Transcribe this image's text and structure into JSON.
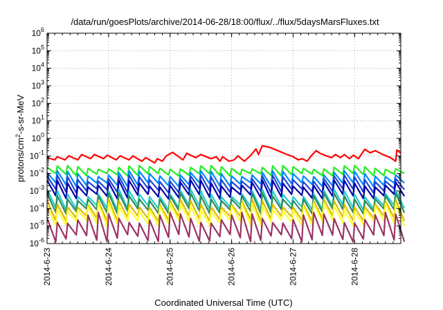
{
  "chart_data": {
    "type": "line",
    "title": "/data/run/goesPlots/archive/2014-06-28/18:00/flux/../flux/5daysMarsFluxes.txt",
    "xlabel": "Coordinated Universal Time (UTC)",
    "ylabel_parts": [
      "protons/cm",
      "2",
      "-s-sr-MeV"
    ],
    "yscale": "log",
    "ylim": [
      1e-06,
      1000000.0
    ],
    "y_ticks": [
      {
        "base": "10",
        "exp": "-6",
        "value": 1e-06
      },
      {
        "base": "10",
        "exp": "-5",
        "value": 1e-05
      },
      {
        "base": "10",
        "exp": "-4",
        "value": 0.0001
      },
      {
        "base": "10",
        "exp": "-3",
        "value": 0.001
      },
      {
        "base": "10",
        "exp": "-2",
        "value": 0.01
      },
      {
        "base": "10",
        "exp": "-1",
        "value": 0.1
      },
      {
        "base": "10",
        "exp": "0",
        "value": 1
      },
      {
        "base": "10",
        "exp": "1",
        "value": 10
      },
      {
        "base": "10",
        "exp": "2",
        "value": 100
      },
      {
        "base": "10",
        "exp": "3",
        "value": 1000
      },
      {
        "base": "10",
        "exp": "4",
        "value": 10000
      },
      {
        "base": "10",
        "exp": "5",
        "value": 100000
      },
      {
        "base": "10",
        "exp": "6",
        "value": 1000000
      }
    ],
    "xlim": [
      "2014-06-23T00:00",
      "2014-06-28T18:00"
    ],
    "x_ticks": [
      {
        "label": "2014-6-23",
        "date": "2014-06-23T00:00"
      },
      {
        "label": "2014-6-24",
        "date": "2014-06-24T00:00"
      },
      {
        "label": "2014-6-25",
        "date": "2014-06-25T00:00"
      },
      {
        "label": "2014-6-26",
        "date": "2014-06-26T00:00"
      },
      {
        "label": "2014-6-27",
        "date": "2014-06-27T00:00"
      },
      {
        "label": "2014-6-28",
        "date": "2014-06-28T00:00"
      }
    ],
    "grid": true,
    "series": [
      {
        "color": "#ff0000",
        "points": [
          [
            "2014-06-23T00:00",
            0.08
          ],
          [
            "2014-06-23T03:00",
            0.06
          ],
          [
            "2014-06-23T04:00",
            0.09
          ],
          [
            "2014-06-23T07:00",
            0.06
          ],
          [
            "2014-06-23T08:30",
            0.1
          ],
          [
            "2014-06-23T12:00",
            0.06
          ],
          [
            "2014-06-23T13:30",
            0.12
          ],
          [
            "2014-06-23T17:00",
            0.07
          ],
          [
            "2014-06-23T18:30",
            0.12
          ],
          [
            "2014-06-23T22:00",
            0.07
          ],
          [
            "2014-06-23T23:30",
            0.11
          ],
          [
            "2014-06-24T03:00",
            0.06
          ],
          [
            "2014-06-24T04:30",
            0.1
          ],
          [
            "2014-06-24T08:00",
            0.06
          ],
          [
            "2014-06-24T09:30",
            0.1
          ],
          [
            "2014-06-24T13:00",
            0.05
          ],
          [
            "2014-06-24T14:30",
            0.08
          ],
          [
            "2014-06-24T18:00",
            0.04
          ],
          [
            "2014-06-24T19:00",
            0.07
          ],
          [
            "2014-06-24T21:00",
            0.05
          ],
          [
            "2014-06-24T22:30",
            0.1
          ],
          [
            "2014-06-25T01:00",
            0.16
          ],
          [
            "2014-06-25T05:00",
            0.06
          ],
          [
            "2014-06-25T06:30",
            0.14
          ],
          [
            "2014-06-25T10:00",
            0.08
          ],
          [
            "2014-06-25T12:00",
            0.12
          ],
          [
            "2014-06-25T16:00",
            0.07
          ],
          [
            "2014-06-25T18:00",
            0.09
          ],
          [
            "2014-06-25T19:30",
            0.05
          ],
          [
            "2014-06-25T20:30",
            0.09
          ],
          [
            "2014-06-25T23:00",
            0.05
          ],
          [
            "2014-06-26T01:00",
            0.06
          ],
          [
            "2014-06-26T02:30",
            0.1
          ],
          [
            "2014-06-26T05:00",
            0.05
          ],
          [
            "2014-06-26T07:30",
            0.11
          ],
          [
            "2014-06-26T09:30",
            0.25
          ],
          [
            "2014-06-26T10:30",
            0.12
          ],
          [
            "2014-06-26T12:00",
            0.38
          ],
          [
            "2014-06-26T15:00",
            0.3
          ],
          [
            "2014-06-26T18:00",
            0.2
          ],
          [
            "2014-06-26T21:00",
            0.13
          ],
          [
            "2014-06-27T00:00",
            0.09
          ],
          [
            "2014-06-27T02:00",
            0.06
          ],
          [
            "2014-06-27T03:30",
            0.07
          ],
          [
            "2014-06-27T05:30",
            0.05
          ],
          [
            "2014-06-27T07:00",
            0.1
          ],
          [
            "2014-06-27T09:00",
            0.2
          ],
          [
            "2014-06-27T10:30",
            0.14
          ],
          [
            "2014-06-27T13:00",
            0.1
          ],
          [
            "2014-06-27T15:00",
            0.08
          ],
          [
            "2014-06-27T16:30",
            0.12
          ],
          [
            "2014-06-27T18:30",
            0.08
          ],
          [
            "2014-06-27T20:00",
            0.12
          ],
          [
            "2014-06-27T22:00",
            0.07
          ],
          [
            "2014-06-27T23:30",
            0.11
          ],
          [
            "2014-06-28T01:30",
            0.07
          ],
          [
            "2014-06-28T03:00",
            0.15
          ],
          [
            "2014-06-28T04:00",
            0.24
          ],
          [
            "2014-06-28T06:00",
            0.15
          ],
          [
            "2014-06-28T08:00",
            0.2
          ],
          [
            "2014-06-28T11:00",
            0.12
          ],
          [
            "2014-06-28T14:00",
            0.08
          ],
          [
            "2014-06-28T16:00",
            0.05
          ],
          [
            "2014-06-28T16:30",
            0.22
          ],
          [
            "2014-06-28T18:00",
            0.14
          ]
        ]
      },
      {
        "color": "#22ee22",
        "base": 0.016,
        "amp": 0.5,
        "phase": 0.0
      },
      {
        "color": "#0088ff",
        "base": 0.006,
        "amp": 0.75,
        "phase": 0.4
      },
      {
        "color": "#2244cc",
        "base": 0.003,
        "amp": 0.85,
        "phase": 0.8
      },
      {
        "color": "#0000aa",
        "base": 0.0015,
        "amp": 0.9,
        "phase": 1.2
      },
      {
        "color": "#22cccc",
        "base": 0.0004,
        "amp": 1.0,
        "phase": 1.6
      },
      {
        "color": "#2e8b57",
        "base": 0.00025,
        "amp": 1.0,
        "phase": 2.0
      },
      {
        "color": "#ddbb00",
        "base": 0.0001,
        "amp": 1.05,
        "phase": 2.4
      },
      {
        "color": "#ffff33",
        "base": 6e-05,
        "amp": 1.1,
        "phase": 2.8
      },
      {
        "color": "#993366",
        "base": 1.2e-05,
        "amp": 1.4,
        "phase": 3.2
      }
    ]
  }
}
